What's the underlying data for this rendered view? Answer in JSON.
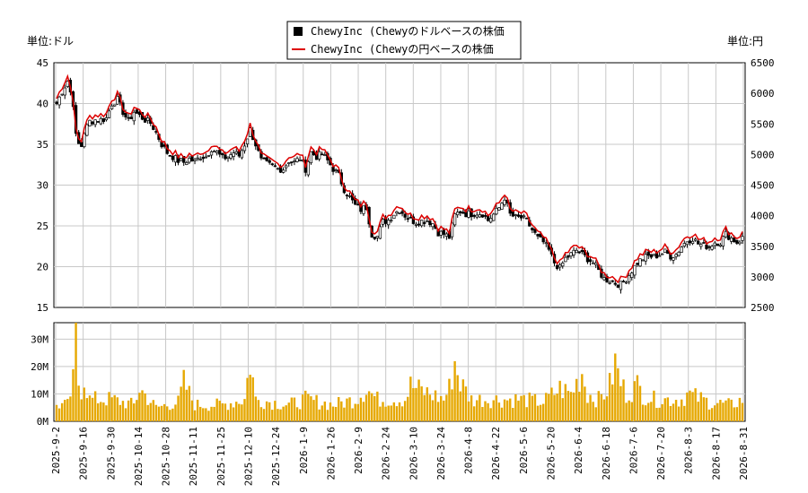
{
  "chart_data": {
    "type": "line",
    "subtype": "candlestick-with-volume",
    "legend": {
      "placement": "top-center",
      "entries": [
        {
          "label": "ChewyInc (Chewyのドルベースの株価",
          "color": "#000000",
          "marker": "square"
        },
        {
          "label": "ChewyInc (Chewyの円ベースの株価",
          "color": "#dd0000",
          "marker": "line"
        }
      ]
    },
    "left_unit": "単位:ドル",
    "right_unit": "単位:円",
    "y_left": {
      "ticks": [
        "45",
        "40",
        "35",
        "30",
        "25",
        "20",
        "15"
      ],
      "range": [
        15,
        45
      ]
    },
    "y_right": {
      "ticks": [
        "6500",
        "6000",
        "5500",
        "5000",
        "4500",
        "4000",
        "3500",
        "3000",
        "2500"
      ],
      "range": [
        2500,
        6500
      ]
    },
    "volume_axis": {
      "ticks": [
        "30M",
        "20M",
        "10M",
        "0M"
      ],
      "range": [
        0,
        36
      ]
    },
    "x_ticks": [
      "2025-9-2",
      "2025-9-16",
      "2025-9-30",
      "2025-10-14",
      "2025-10-28",
      "2025-11-11",
      "2025-11-25",
      "2025-12-10",
      "2025-12-24",
      "2026-1-9",
      "2026-1-26",
      "2026-2-9",
      "2026-2-24",
      "2026-3-10",
      "2026-3-24",
      "2026-4-8",
      "2026-4-22",
      "2026-5-6",
      "2026-5-20",
      "2026-6-4",
      "2026-6-18",
      "2026-7-6",
      "2026-7-20",
      "2026-8-3",
      "2026-8-17",
      "2026-8-31"
    ],
    "close_keypoints": [
      [
        0,
        40
      ],
      [
        2,
        41.5
      ],
      [
        4,
        42.8
      ],
      [
        6,
        40
      ],
      [
        7,
        36
      ],
      [
        8,
        35
      ],
      [
        9,
        34.8
      ],
      [
        10,
        36.5
      ],
      [
        12,
        37.8
      ],
      [
        14,
        38
      ],
      [
        16,
        38
      ],
      [
        18,
        38.2
      ],
      [
        20,
        40
      ],
      [
        22,
        40.5
      ],
      [
        24,
        39
      ],
      [
        26,
        37.8
      ],
      [
        28,
        39
      ],
      [
        30,
        38.5
      ],
      [
        32,
        38
      ],
      [
        34,
        37.6
      ],
      [
        36,
        36.5
      ],
      [
        38,
        35
      ],
      [
        40,
        34
      ],
      [
        42,
        33.5
      ],
      [
        44,
        33
      ],
      [
        46,
        32.8
      ],
      [
        48,
        33.2
      ],
      [
        50,
        32.9
      ],
      [
        52,
        33.5
      ],
      [
        54,
        33.5
      ],
      [
        56,
        34.5
      ],
      [
        58,
        34
      ],
      [
        60,
        33.3
      ],
      [
        62,
        33.5
      ],
      [
        64,
        34
      ],
      [
        66,
        33.6
      ],
      [
        68,
        35
      ],
      [
        70,
        36.8
      ],
      [
        72,
        35
      ],
      [
        74,
        33
      ],
      [
        76,
        32.6
      ],
      [
        78,
        32.3
      ],
      [
        80,
        32
      ],
      [
        82,
        32
      ],
      [
        84,
        33
      ],
      [
        86,
        32.8
      ],
      [
        88,
        33.3
      ],
      [
        90,
        32
      ],
      [
        92,
        34
      ],
      [
        94,
        33.5
      ],
      [
        96,
        33.8
      ],
      [
        98,
        33
      ],
      [
        100,
        32
      ],
      [
        102,
        31.2
      ],
      [
        104,
        29.5
      ],
      [
        106,
        28.5
      ],
      [
        108,
        27.5
      ],
      [
        110,
        27
      ],
      [
        112,
        27.3
      ],
      [
        114,
        24
      ],
      [
        116,
        23.7
      ],
      [
        118,
        25.5
      ],
      [
        120,
        25.7
      ],
      [
        122,
        26.5
      ],
      [
        124,
        27
      ],
      [
        126,
        26.3
      ],
      [
        128,
        25.7
      ],
      [
        130,
        25.5
      ],
      [
        132,
        25.6
      ],
      [
        134,
        25.7
      ],
      [
        136,
        25.3
      ],
      [
        138,
        24.2
      ],
      [
        140,
        24
      ],
      [
        142,
        23.6
      ],
      [
        144,
        26.3
      ],
      [
        146,
        26.8
      ],
      [
        148,
        26.5
      ],
      [
        150,
        26.5
      ],
      [
        152,
        26.6
      ],
      [
        154,
        26.5
      ],
      [
        156,
        25.7
      ],
      [
        158,
        26.4
      ],
      [
        160,
        27.2
      ],
      [
        162,
        28.5
      ],
      [
        164,
        26.4
      ],
      [
        166,
        26
      ],
      [
        168,
        26
      ],
      [
        170,
        25.6
      ],
      [
        172,
        24.5
      ],
      [
        174,
        23.5
      ],
      [
        176,
        23
      ],
      [
        178,
        22
      ],
      [
        180,
        20.5
      ],
      [
        182,
        19.8
      ],
      [
        184,
        21
      ],
      [
        186,
        21.5
      ],
      [
        188,
        22
      ],
      [
        190,
        21.5
      ],
      [
        192,
        21
      ],
      [
        194,
        20.5
      ],
      [
        196,
        19.5
      ],
      [
        198,
        18.5
      ],
      [
        200,
        18.3
      ],
      [
        202,
        18
      ],
      [
        204,
        17.8
      ],
      [
        206,
        18.5
      ],
      [
        208,
        19.5
      ],
      [
        210,
        20.5
      ],
      [
        212,
        21
      ],
      [
        214,
        21.3
      ],
      [
        216,
        21.2
      ],
      [
        218,
        21.5
      ],
      [
        220,
        21.8
      ],
      [
        222,
        21.3
      ],
      [
        224,
        21.5
      ],
      [
        226,
        22.5
      ],
      [
        228,
        23.2
      ],
      [
        230,
        23.5
      ],
      [
        232,
        22.8
      ],
      [
        234,
        22.6
      ],
      [
        236,
        22.5
      ],
      [
        238,
        23
      ],
      [
        240,
        23
      ],
      [
        242,
        24
      ],
      [
        244,
        23.5
      ],
      [
        246,
        23
      ],
      [
        248,
        23.5
      ]
    ],
    "yen_offset": 0.6,
    "volume_keypoints": [
      [
        0,
        6
      ],
      [
        4,
        6
      ],
      [
        6,
        14
      ],
      [
        7,
        36
      ],
      [
        8,
        14
      ],
      [
        9,
        12
      ],
      [
        10,
        16
      ],
      [
        12,
        8
      ],
      [
        20,
        8
      ],
      [
        28,
        6
      ],
      [
        30,
        12
      ],
      [
        36,
        5
      ],
      [
        44,
        7
      ],
      [
        46,
        14
      ],
      [
        50,
        6
      ],
      [
        60,
        6
      ],
      [
        68,
        8
      ],
      [
        70,
        22
      ],
      [
        72,
        8
      ],
      [
        84,
        6
      ],
      [
        90,
        8
      ],
      [
        100,
        6
      ],
      [
        108,
        8
      ],
      [
        112,
        12
      ],
      [
        116,
        8
      ],
      [
        126,
        8
      ],
      [
        128,
        13
      ],
      [
        130,
        12
      ],
      [
        140,
        8
      ],
      [
        142,
        12
      ],
      [
        144,
        22
      ],
      [
        146,
        14
      ],
      [
        150,
        8
      ],
      [
        160,
        8
      ],
      [
        168,
        8
      ],
      [
        176,
        7
      ],
      [
        182,
        12
      ],
      [
        186,
        10
      ],
      [
        190,
        18
      ],
      [
        192,
        10
      ],
      [
        196,
        8
      ],
      [
        198,
        10
      ],
      [
        200,
        13
      ],
      [
        202,
        21
      ],
      [
        204,
        14
      ],
      [
        206,
        10
      ],
      [
        210,
        13
      ],
      [
        212,
        10
      ],
      [
        216,
        8
      ],
      [
        226,
        8
      ],
      [
        228,
        10
      ],
      [
        236,
        7
      ],
      [
        244,
        6
      ],
      [
        248,
        8
      ]
    ]
  }
}
